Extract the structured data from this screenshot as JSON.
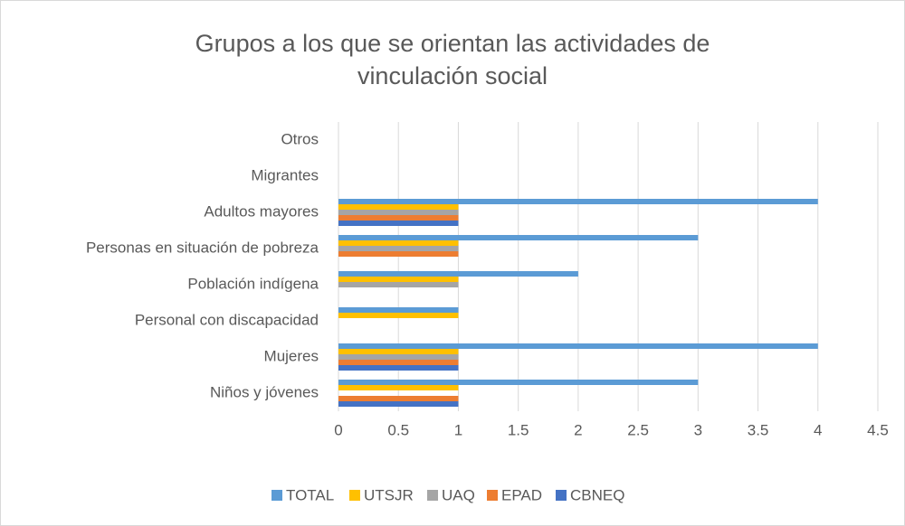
{
  "chart_data": {
    "type": "hbar",
    "title": "Grupos a los que se orientan las actividades de vinculación social",
    "categories": [
      "Niños y jóvenes",
      "Mujeres",
      "Personal con discapacidad",
      "Población indígena",
      "Personas en situación de pobreza",
      "Adultos mayores",
      "Migrantes",
      "Otros"
    ],
    "series": [
      {
        "name": "TOTAL",
        "color": "#5b9bd5",
        "values": [
          3,
          4,
          1,
          2,
          3,
          4,
          0,
          0
        ]
      },
      {
        "name": "UTSJR",
        "color": "#ffc000",
        "values": [
          1,
          1,
          1,
          1,
          1,
          1,
          0,
          0
        ]
      },
      {
        "name": "UAQ",
        "color": "#a5a5a5",
        "values": [
          0,
          1,
          0,
          1,
          1,
          1,
          0,
          0
        ]
      },
      {
        "name": "EPAD",
        "color": "#ed7d31",
        "values": [
          1,
          1,
          0,
          0,
          1,
          1,
          0,
          0
        ]
      },
      {
        "name": "CBNEQ",
        "color": "#4472c4",
        "values": [
          1,
          1,
          0,
          0,
          0,
          1,
          0,
          0
        ]
      }
    ],
    "xlim": [
      0,
      4.5
    ],
    "xticks": [
      0,
      0.5,
      1,
      1.5,
      2,
      2.5,
      3,
      3.5,
      4,
      4.5
    ],
    "grid": true,
    "legend": "bottom"
  }
}
